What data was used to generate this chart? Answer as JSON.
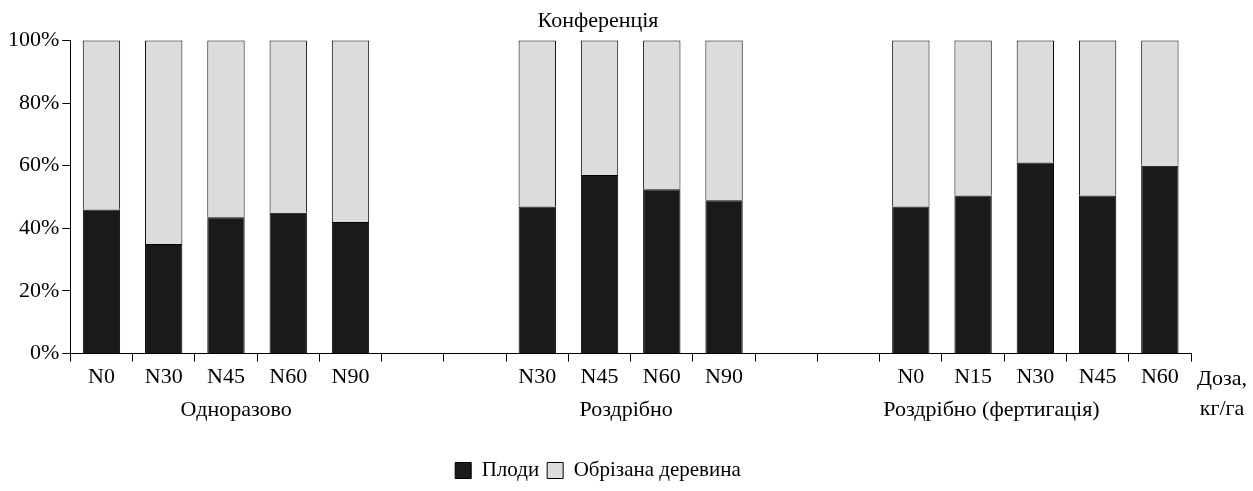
{
  "chart_data": {
    "type": "bar",
    "stacked": true,
    "title": "Конференція",
    "xlabel": "Доза, кг/га",
    "categories": [
      "N0",
      "N30",
      "N45",
      "N60",
      "N90",
      null,
      null,
      "N30",
      "N45",
      "N60",
      "N90",
      null,
      null,
      "N0",
      "N15",
      "N30",
      "N45",
      "N60"
    ],
    "series": [
      {
        "name": "Плоди",
        "color": "#1a1a1a",
        "values": [
          46,
          35,
          43.5,
          45,
          42,
          null,
          null,
          47,
          57,
          52.5,
          49,
          null,
          null,
          47,
          50.5,
          61,
          50.5,
          60
        ]
      },
      {
        "name": "Обрізана деревина",
        "color": "#dcdcdc",
        "values": [
          54,
          65,
          56.5,
          55,
          58,
          null,
          null,
          53,
          43,
          47.5,
          51,
          null,
          null,
          53,
          49.5,
          39,
          49.5,
          40
        ]
      }
    ],
    "ylim": [
      0,
      100
    ],
    "yticks": [
      {
        "value": 0,
        "label": "0%"
      },
      {
        "value": 20,
        "label": "20%"
      },
      {
        "value": 40,
        "label": "40%"
      },
      {
        "value": 60,
        "label": "60%"
      },
      {
        "value": 80,
        "label": "80%"
      },
      {
        "value": 100,
        "label": "100%"
      }
    ],
    "annotations": [
      "Одноразово",
      "Роздрібно",
      "Роздрібно (фертигація)"
    ],
    "grid": false,
    "legend": "bottom"
  }
}
